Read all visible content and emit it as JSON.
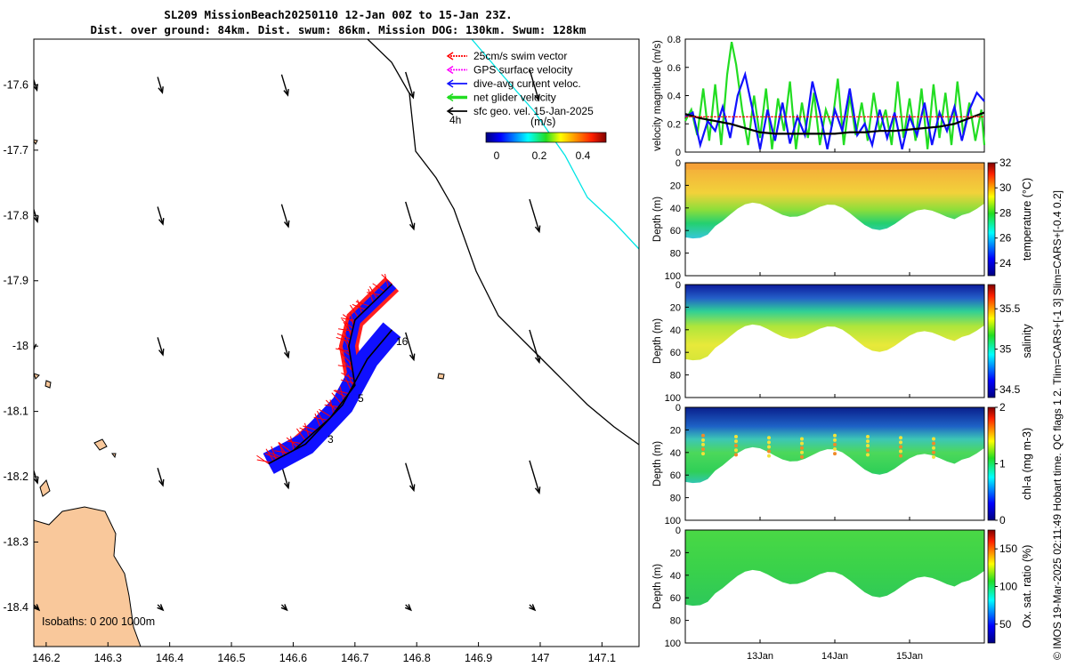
{
  "title": {
    "line1": "SL209 MissionBeach20250110 12-Jan 00Z to 15-Jan 23Z.",
    "line2": "Dist. over ground: 84km. Dist. swum: 86km. Mission DOG: 130km. Swum: 128km"
  },
  "colors": {
    "land": "#f9c89b",
    "swim": "#ff0000",
    "gps": "#ff00ff",
    "dive_avg": "#1010ff",
    "net": "#22dd22",
    "geo": "#000000",
    "shelf_line": "#00e5e5",
    "isobath": "#000000"
  },
  "map": {
    "xlim": [
      146.18,
      147.16
    ],
    "ylim": [
      -18.46,
      -17.53
    ],
    "xticks": [
      "146.2",
      "146.3",
      "146.4",
      "146.5",
      "146.6",
      "146.7",
      "146.8",
      "146.9",
      "147",
      "147.1"
    ],
    "yticks": [
      "-17.6",
      "-17.7",
      "-17.8",
      "-17.9",
      "-18",
      "-18.1",
      "-18.2",
      "-18.3",
      "-18.4"
    ],
    "legend": [
      {
        "label": "25cm/s swim vector",
        "color": "#ff0000"
      },
      {
        "label": "GPS surface velocity",
        "color": "#ff00ff"
      },
      {
        "label": "dive-avg current veloc.",
        "color": "#1010ff"
      },
      {
        "label": "net glider velocity",
        "color": "#22dd22"
      },
      {
        "label": "sfc geo. vel. 15-Jan-2025",
        "color": "#000000"
      }
    ],
    "time_marker": "4h",
    "colorbar": {
      "label": "(m/s)",
      "ticks": [
        "0",
        "0.2",
        "0.4"
      ]
    },
    "isobaths_label": "Isobaths: 0   200  1000m",
    "track_labels": [
      "16",
      "5",
      "3"
    ]
  },
  "chart_data": [
    {
      "type": "line",
      "ylabel": "velocity magnitude (m/s)",
      "ylim": [
        0,
        0.8
      ],
      "yticks": [
        "0",
        "0.2",
        "0.4",
        "0.6",
        "0.8"
      ],
      "x_days": [
        12.0,
        16.0
      ],
      "series": [
        {
          "name": "net glider velocity",
          "color": "#22dd22",
          "x": [
            12.0,
            12.08,
            12.16,
            12.24,
            12.32,
            12.4,
            12.48,
            12.56,
            12.62,
            12.68,
            12.76,
            12.84,
            12.92,
            13.0,
            13.08,
            13.16,
            13.24,
            13.32,
            13.4,
            13.48,
            13.56,
            13.64,
            13.72,
            13.8,
            13.88,
            13.96,
            14.04,
            14.12,
            14.2,
            14.28,
            14.36,
            14.44,
            14.52,
            14.6,
            14.68,
            14.76,
            14.84,
            14.92,
            15.0,
            15.08,
            15.16,
            15.24,
            15.32,
            15.4,
            15.48,
            15.56,
            15.64,
            15.72,
            15.8,
            15.88,
            15.96,
            16.0
          ],
          "values": [
            0.22,
            0.3,
            0.12,
            0.45,
            0.08,
            0.48,
            0.05,
            0.55,
            0.78,
            0.62,
            0.3,
            0.05,
            0.4,
            0.1,
            0.45,
            0.02,
            0.38,
            0.15,
            0.5,
            0.02,
            0.35,
            0.1,
            0.42,
            0.05,
            0.3,
            0.18,
            0.52,
            0.05,
            0.4,
            0.12,
            0.35,
            0.08,
            0.42,
            0.15,
            0.3,
            0.05,
            0.5,
            0.1,
            0.38,
            0.08,
            0.45,
            0.02,
            0.48,
            0.1,
            0.42,
            0.05,
            0.5,
            0.12,
            0.35,
            0.08,
            0.3,
            0.05
          ]
        },
        {
          "name": "dive-avg current",
          "color": "#1010ff",
          "x": [
            12.0,
            12.1,
            12.2,
            12.3,
            12.4,
            12.5,
            12.6,
            12.7,
            12.8,
            12.9,
            13.0,
            13.1,
            13.2,
            13.3,
            13.4,
            13.5,
            13.6,
            13.7,
            13.8,
            13.9,
            14.0,
            14.1,
            14.2,
            14.3,
            14.4,
            14.5,
            14.6,
            14.7,
            14.8,
            14.9,
            15.0,
            15.1,
            15.2,
            15.3,
            15.4,
            15.5,
            15.6,
            15.7,
            15.8,
            15.9,
            16.0
          ],
          "values": [
            0.25,
            0.28,
            0.05,
            0.22,
            0.15,
            0.32,
            0.1,
            0.4,
            0.55,
            0.3,
            0.02,
            0.3,
            0.08,
            0.35,
            0.06,
            0.25,
            0.12,
            0.5,
            0.28,
            0.02,
            0.3,
            0.15,
            0.45,
            0.12,
            0.2,
            0.05,
            0.3,
            0.1,
            0.28,
            0.02,
            0.25,
            0.12,
            0.35,
            0.05,
            0.28,
            0.15,
            0.32,
            0.08,
            0.3,
            0.42,
            0.36
          ]
        },
        {
          "name": "sfc geo. vel.",
          "color": "#000000",
          "x": [
            12.0,
            12.2,
            12.4,
            12.6,
            12.8,
            13.0,
            13.2,
            13.4,
            13.6,
            13.8,
            14.0,
            14.2,
            14.4,
            14.6,
            14.8,
            15.0,
            15.2,
            15.4,
            15.6,
            15.8,
            16.0
          ],
          "values": [
            0.27,
            0.24,
            0.22,
            0.2,
            0.17,
            0.14,
            0.13,
            0.13,
            0.13,
            0.13,
            0.13,
            0.14,
            0.14,
            0.15,
            0.15,
            0.16,
            0.17,
            0.18,
            0.2,
            0.24,
            0.28
          ]
        },
        {
          "name": "swim speed",
          "color": "#ff0000",
          "x": [
            12.0,
            16.0
          ],
          "values": [
            0.25,
            0.25
          ]
        }
      ]
    },
    {
      "type": "heatmap",
      "variable": "temperature (°C)",
      "ylabel": "Depth (m)",
      "depth_ticks": [
        "0",
        "20",
        "40",
        "60",
        "80",
        "100"
      ],
      "cbar_ticks": [
        "32",
        "30",
        "28",
        "26",
        "24"
      ],
      "crange": [
        23,
        32
      ],
      "layers": {
        "surface": 29.5,
        "mid": 28,
        "bottom": 26,
        "deep": 25
      }
    },
    {
      "type": "heatmap",
      "variable": "salinity",
      "ylabel": "Depth (m)",
      "depth_ticks": [
        "0",
        "20",
        "40",
        "60",
        "80",
        "100"
      ],
      "cbar_ticks": [
        "35.5",
        "35",
        "34.5"
      ],
      "crange": [
        34.4,
        35.8
      ],
      "layers": {
        "surface": 34.5,
        "mid": 35.0,
        "bottom": 35.1,
        "deep": 35.0
      }
    },
    {
      "type": "heatmap",
      "variable": "chl-a (mg m-3)",
      "ylabel": "Depth (m)",
      "depth_ticks": [
        "0",
        "20",
        "40",
        "60",
        "80",
        "100"
      ],
      "cbar_ticks": [
        "2",
        "1",
        "0"
      ],
      "crange": [
        0,
        2
      ],
      "layers": {
        "surface": 0.15,
        "mid": 0.9,
        "bottom": 1.2,
        "deep": 0.6
      }
    },
    {
      "type": "heatmap",
      "variable": "Ox. sat. ratio (%)",
      "ylabel": "Depth (m)",
      "depth_ticks": [
        "0",
        "20",
        "40",
        "60",
        "80",
        "100"
      ],
      "cbar_ticks": [
        "150",
        "100",
        "50"
      ],
      "crange": [
        25,
        175
      ],
      "layers": {
        "surface": 100,
        "mid": 98,
        "bottom": 96,
        "deep": 95
      }
    }
  ],
  "time_axis": {
    "ticks": [
      "13Jan",
      "14Jan",
      "15Jan"
    ],
    "days": [
      13,
      14,
      15
    ]
  },
  "side_credit": "© IMOS 19-Mar-2025 02:11:49 Hobart time. QC flags 1  2. Tlim=CARS+[-1 3] Slim=CARS+[-0.4 0.2]"
}
